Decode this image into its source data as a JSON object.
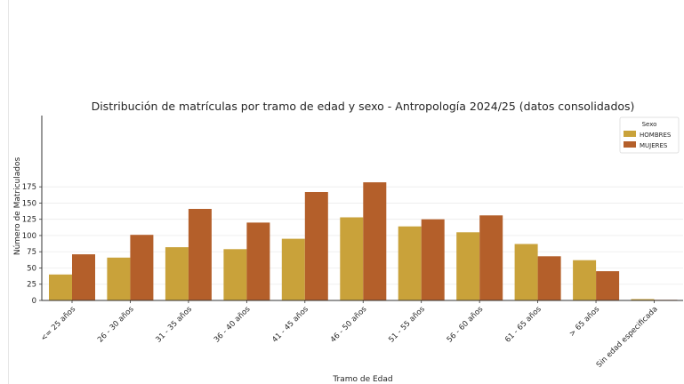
{
  "chart_data": {
    "type": "bar",
    "title": "Distribución de matrículas por tramo de edad y sexo - Antropología 2024/25 (datos consolidados)",
    "xlabel": "Tramo de Edad",
    "ylabel": "Número de Matriculados",
    "ylim": [
      0,
      190
    ],
    "yticks": [
      0,
      25,
      50,
      75,
      100,
      125,
      150,
      175
    ],
    "grid": "horizontal",
    "legend": {
      "title": "Sexo",
      "placement": "top-right"
    },
    "categories": [
      "<= 25 años",
      "26 - 30 años",
      "31 - 35 años",
      "36 - 40 años",
      "41 - 45 años",
      "46 - 50 años",
      "51 - 55 años",
      "56 - 60 años",
      "61 - 65 años",
      "> 65 años",
      "Sin edad especificada"
    ],
    "series": [
      {
        "name": "HOMBRES",
        "color": "#C9A23A",
        "values": [
          40,
          66,
          82,
          79,
          95,
          128,
          114,
          105,
          87,
          62,
          2
        ]
      },
      {
        "name": "MUJERES",
        "color": "#B45F2A",
        "values": [
          71,
          101,
          141,
          120,
          167,
          182,
          125,
          131,
          68,
          45,
          1
        ]
      }
    ]
  }
}
